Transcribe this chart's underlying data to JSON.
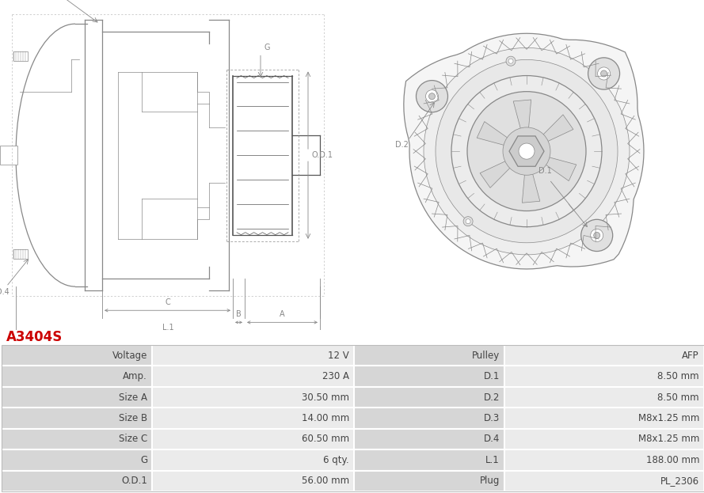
{
  "title": "A3404S",
  "title_color": "#cc0000",
  "table_data": [
    [
      "Voltage",
      "12 V",
      "Pulley",
      "AFP"
    ],
    [
      "Amp.",
      "230 A",
      "D.1",
      "8.50 mm"
    ],
    [
      "Size A",
      "30.50 mm",
      "D.2",
      "8.50 mm"
    ],
    [
      "Size B",
      "14.00 mm",
      "D.3",
      "M8x1.25 mm"
    ],
    [
      "Size C",
      "60.50 mm",
      "D.4",
      "M8x1.25 mm"
    ],
    [
      "G",
      "6 qty.",
      "L.1",
      "188.00 mm"
    ],
    [
      "O.D.1",
      "56.00 mm",
      "Plug",
      "PL_2306"
    ]
  ],
  "fig_bg": "#ffffff",
  "label_col_bg": "#d6d6d6",
  "value_col_bg": "#ebebeb",
  "row_sep_color": "#ffffff",
  "text_color": "#444444",
  "title_fontsize": 12,
  "cell_fontsize": 8.5,
  "draw_color": "#888888",
  "draw_color_dark": "#555555"
}
